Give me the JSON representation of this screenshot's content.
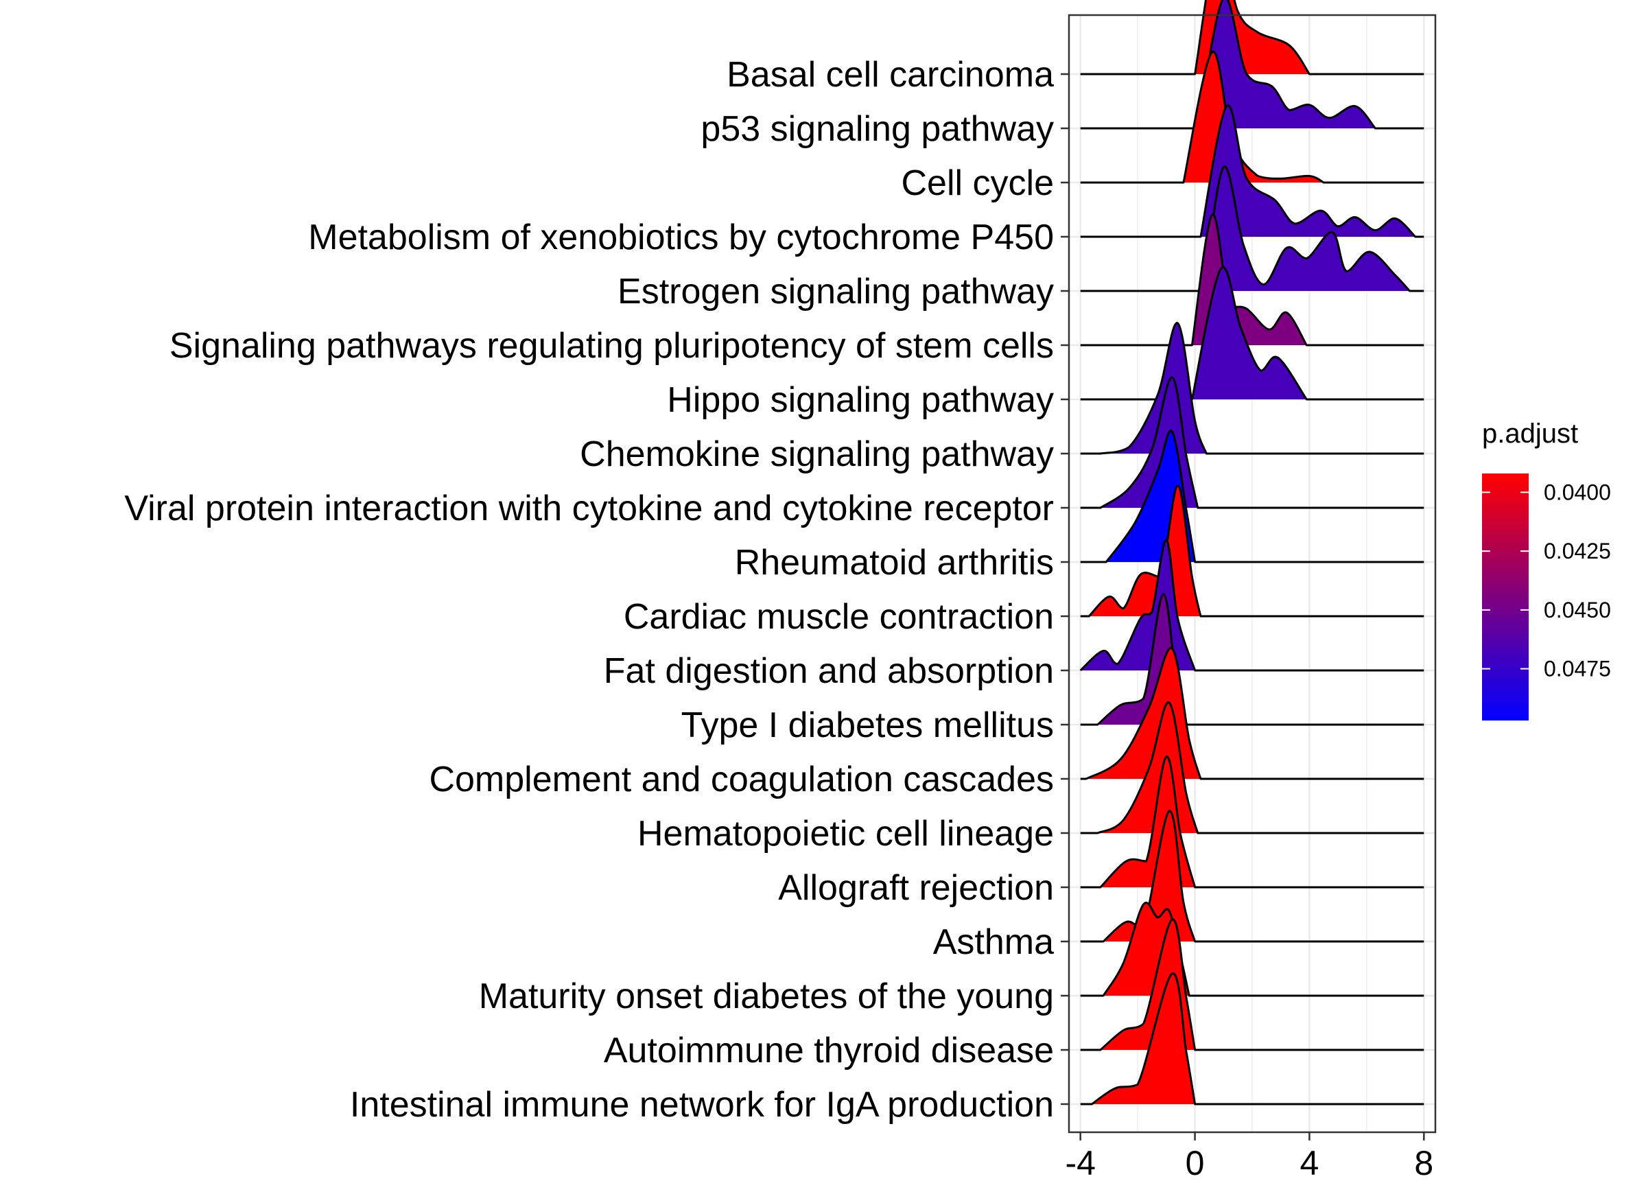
{
  "chart_data": {
    "type": "ridgeline",
    "title": "",
    "xlabel": "",
    "ylabel": "",
    "xlim": [
      -4.4,
      8.4
    ],
    "x_ticks": [
      "-4",
      "0",
      "4",
      "8"
    ],
    "x_tick_values": [
      -4,
      0,
      4,
      8
    ],
    "grid": true,
    "legend": {
      "title": "p.adjust",
      "position": "right",
      "colors": [
        "#FF0000",
        "#0000FF"
      ],
      "range": [
        0.0392,
        0.0497
      ],
      "tick_labels": [
        "0.0400",
        "0.0425",
        "0.0450",
        "0.0475"
      ],
      "tick_values": [
        0.04,
        0.0425,
        0.045,
        0.0475
      ]
    },
    "series": [
      {
        "name": "Basal cell carcinoma",
        "p_adjust": 0.0392,
        "range": [
          -4,
          8
        ],
        "density": [
          [
            0.0,
            0
          ],
          [
            0.8,
            1.0
          ],
          [
            1.5,
            0.48
          ],
          [
            2.2,
            0.32
          ],
          [
            3.3,
            0.22
          ],
          [
            4.0,
            0
          ]
        ]
      },
      {
        "name": "p53 signaling pathway",
        "p_adjust": 0.0468,
        "range": [
          -4,
          8
        ],
        "density": [
          [
            0.1,
            0
          ],
          [
            1.0,
            1.0
          ],
          [
            1.8,
            0.42
          ],
          [
            2.7,
            0.32
          ],
          [
            3.3,
            0.14
          ],
          [
            4.0,
            0.18
          ],
          [
            4.7,
            0.08
          ],
          [
            5.6,
            0.17
          ],
          [
            6.3,
            0
          ]
        ]
      },
      {
        "name": "Cell cycle",
        "p_adjust": 0.0392,
        "range": [
          -4,
          8
        ],
        "density": [
          [
            -0.4,
            0
          ],
          [
            0.6,
            1.0
          ],
          [
            1.3,
            0.32
          ],
          [
            2.2,
            0.05
          ],
          [
            3.0,
            0.03
          ],
          [
            4.0,
            0.05
          ],
          [
            4.5,
            0
          ]
        ]
      },
      {
        "name": "Metabolism of xenobiotics by cytochrome P450",
        "p_adjust": 0.0468,
        "range": [
          -4,
          8
        ],
        "density": [
          [
            0.2,
            0
          ],
          [
            1.1,
            1.0
          ],
          [
            1.8,
            0.45
          ],
          [
            2.8,
            0.28
          ],
          [
            3.5,
            0.1
          ],
          [
            4.4,
            0.2
          ],
          [
            5.0,
            0.08
          ],
          [
            5.6,
            0.15
          ],
          [
            6.3,
            0.05
          ],
          [
            7.0,
            0.14
          ],
          [
            7.7,
            0
          ]
        ]
      },
      {
        "name": "Estrogen signaling pathway",
        "p_adjust": 0.0468,
        "range": [
          -4,
          8
        ],
        "density": [
          [
            0.3,
            0
          ],
          [
            1.0,
            0.95
          ],
          [
            1.7,
            0.35
          ],
          [
            2.4,
            0.05
          ],
          [
            3.2,
            0.33
          ],
          [
            3.9,
            0.25
          ],
          [
            4.8,
            0.45
          ],
          [
            5.3,
            0.15
          ],
          [
            6.1,
            0.3
          ],
          [
            7.0,
            0.12
          ],
          [
            7.5,
            0
          ]
        ]
      },
      {
        "name": "Signaling pathways regulating pluripotency of stem cells",
        "p_adjust": 0.0445,
        "range": [
          -4,
          8
        ],
        "density": [
          [
            -0.1,
            0
          ],
          [
            0.6,
            1.0
          ],
          [
            1.2,
            0.3
          ],
          [
            1.8,
            0.28
          ],
          [
            2.6,
            0.12
          ],
          [
            3.2,
            0.25
          ],
          [
            3.9,
            0
          ]
        ]
      },
      {
        "name": "Hippo signaling pathway",
        "p_adjust": 0.0468,
        "range": [
          -4,
          8
        ],
        "density": [
          [
            -0.1,
            0
          ],
          [
            0.9,
            1.0
          ],
          [
            1.6,
            0.55
          ],
          [
            2.3,
            0.22
          ],
          [
            2.9,
            0.32
          ],
          [
            3.9,
            0
          ]
        ]
      },
      {
        "name": "Chemokine signaling pathway",
        "p_adjust": 0.0468,
        "range": [
          -4,
          8
        ],
        "density": [
          [
            -3.3,
            0
          ],
          [
            -2.3,
            0.05
          ],
          [
            -1.3,
            0.45
          ],
          [
            -0.6,
            1.0
          ],
          [
            0.0,
            0.25
          ],
          [
            0.4,
            0
          ]
        ]
      },
      {
        "name": "Viral protein interaction with cytokine and cytokine receptor",
        "p_adjust": 0.0468,
        "range": [
          -4,
          8
        ],
        "density": [
          [
            -3.3,
            0
          ],
          [
            -2.3,
            0.15
          ],
          [
            -1.5,
            0.45
          ],
          [
            -0.8,
            1.0
          ],
          [
            -0.3,
            0.4
          ],
          [
            0.1,
            0
          ]
        ]
      },
      {
        "name": "Rheumatoid arthritis",
        "p_adjust": 0.0497,
        "range": [
          -4,
          8
        ],
        "density": [
          [
            -3.1,
            0
          ],
          [
            -2.1,
            0.3
          ],
          [
            -1.3,
            0.7
          ],
          [
            -0.8,
            1.0
          ],
          [
            -0.3,
            0.4
          ],
          [
            0.0,
            0
          ]
        ]
      },
      {
        "name": "Cardiac muscle contraction",
        "p_adjust": 0.0392,
        "range": [
          -4,
          8
        ],
        "density": [
          [
            -3.7,
            0
          ],
          [
            -3.0,
            0.15
          ],
          [
            -2.5,
            0.06
          ],
          [
            -1.9,
            0.32
          ],
          [
            -1.2,
            0.3
          ],
          [
            -0.6,
            1.0
          ],
          [
            -0.1,
            0.3
          ],
          [
            0.2,
            0
          ]
        ]
      },
      {
        "name": "Fat digestion and absorption",
        "p_adjust": 0.0468,
        "range": [
          -4,
          8
        ],
        "density": [
          [
            -4.0,
            0
          ],
          [
            -3.2,
            0.15
          ],
          [
            -2.7,
            0.05
          ],
          [
            -1.9,
            0.4
          ],
          [
            -1.5,
            0.45
          ],
          [
            -1.0,
            1.0
          ],
          [
            -0.6,
            0.4
          ],
          [
            0.0,
            0
          ]
        ]
      },
      {
        "name": "Type I diabetes mellitus",
        "p_adjust": 0.0452,
        "range": [
          -4,
          8
        ],
        "density": [
          [
            -3.4,
            0
          ],
          [
            -2.6,
            0.15
          ],
          [
            -1.8,
            0.2
          ],
          [
            -1.1,
            1.0
          ],
          [
            -0.6,
            0.2
          ],
          [
            -0.3,
            0
          ]
        ]
      },
      {
        "name": "Complement and coagulation cascades",
        "p_adjust": 0.0392,
        "range": [
          -4,
          8
        ],
        "density": [
          [
            -3.8,
            0
          ],
          [
            -2.6,
            0.15
          ],
          [
            -1.6,
            0.55
          ],
          [
            -0.8,
            1.0
          ],
          [
            -0.2,
            0.3
          ],
          [
            0.2,
            0
          ]
        ]
      },
      {
        "name": "Hematopoietic cell lineage",
        "p_adjust": 0.0392,
        "range": [
          -4,
          8
        ],
        "density": [
          [
            -3.4,
            0
          ],
          [
            -2.5,
            0.1
          ],
          [
            -1.6,
            0.5
          ],
          [
            -0.9,
            1.0
          ],
          [
            -0.3,
            0.3
          ],
          [
            0.1,
            0
          ]
        ]
      },
      {
        "name": "Allograft rejection",
        "p_adjust": 0.0392,
        "range": [
          -4,
          8
        ],
        "density": [
          [
            -3.3,
            0
          ],
          [
            -2.4,
            0.2
          ],
          [
            -1.7,
            0.2
          ],
          [
            -1.0,
            1.0
          ],
          [
            -0.5,
            0.4
          ],
          [
            0.0,
            0
          ]
        ]
      },
      {
        "name": "Asthma",
        "p_adjust": 0.0392,
        "range": [
          -4,
          8
        ],
        "density": [
          [
            -3.2,
            0
          ],
          [
            -2.4,
            0.15
          ],
          [
            -1.8,
            0.1
          ],
          [
            -0.9,
            1.0
          ],
          [
            -0.4,
            0.3
          ],
          [
            0.0,
            0
          ]
        ]
      },
      {
        "name": "Maturity onset diabetes of the young",
        "p_adjust": 0.0392,
        "range": [
          -4,
          8
        ],
        "density": [
          [
            -3.2,
            0
          ],
          [
            -2.5,
            0.25
          ],
          [
            -1.8,
            0.7
          ],
          [
            -1.3,
            0.6
          ],
          [
            -0.9,
            0.65
          ],
          [
            -0.5,
            0.3
          ],
          [
            -0.2,
            0
          ]
        ]
      },
      {
        "name": "Autoimmune thyroid disease",
        "p_adjust": 0.0392,
        "range": [
          -4,
          8
        ],
        "density": [
          [
            -3.3,
            0
          ],
          [
            -2.5,
            0.15
          ],
          [
            -1.8,
            0.2
          ],
          [
            -0.8,
            1.0
          ],
          [
            -0.3,
            0.4
          ],
          [
            0.0,
            0
          ]
        ]
      },
      {
        "name": "Intestinal immune network for IgA production",
        "p_adjust": 0.0392,
        "range": [
          -4,
          8
        ],
        "density": [
          [
            -3.6,
            0
          ],
          [
            -2.8,
            0.12
          ],
          [
            -2.0,
            0.15
          ],
          [
            -0.8,
            1.0
          ],
          [
            -0.3,
            0.4
          ],
          [
            0.0,
            0
          ]
        ]
      }
    ]
  }
}
